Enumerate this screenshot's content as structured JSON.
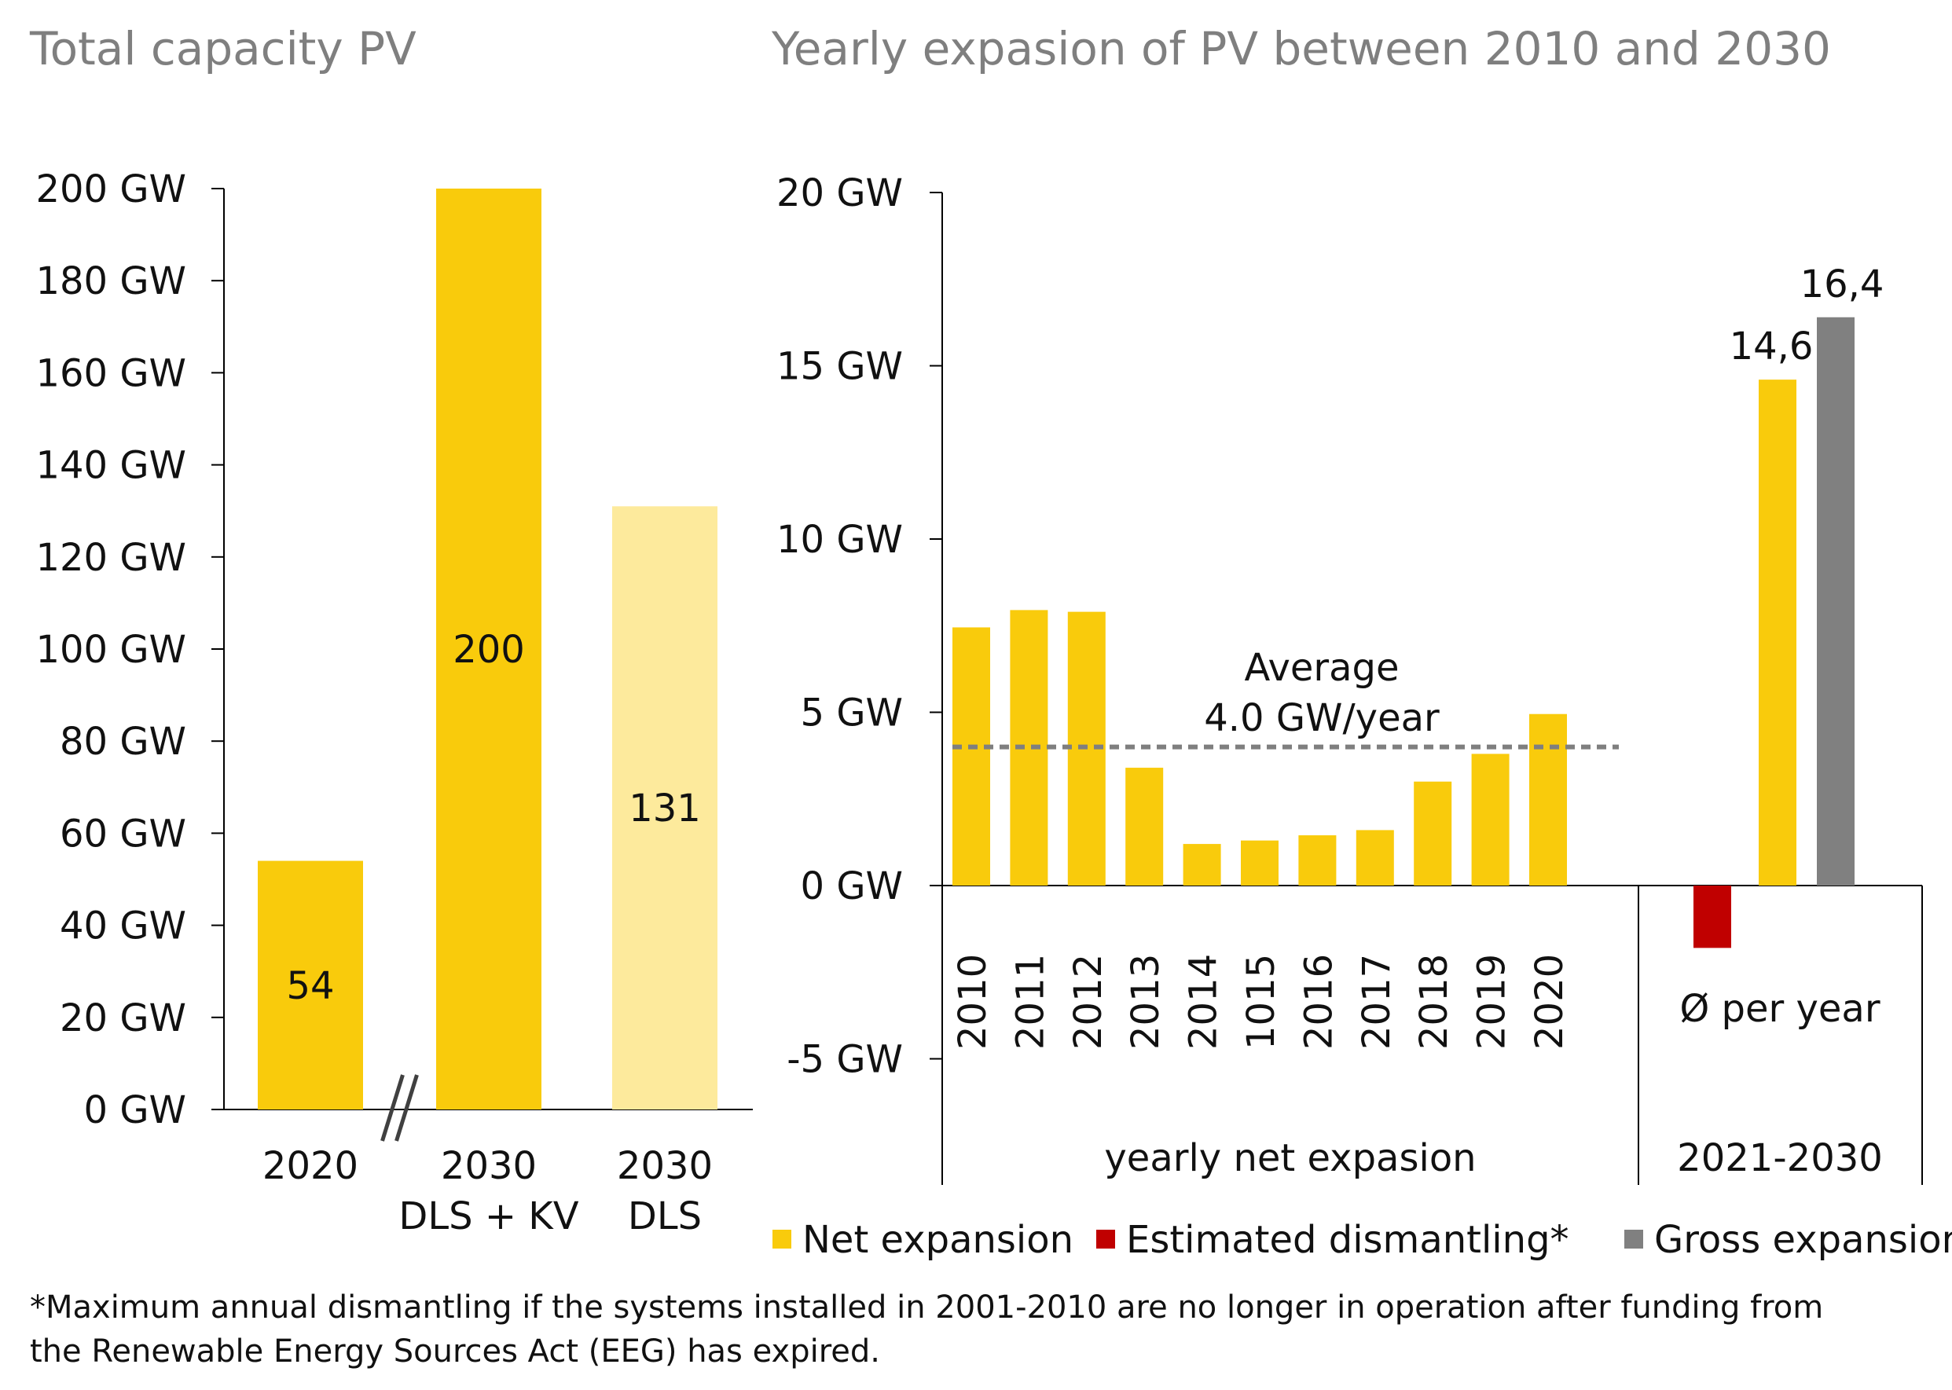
{
  "colors": {
    "net": "#F9CB0C",
    "net_light": "#FDEA9C",
    "dismantling": "#C00000",
    "gross": "#808080",
    "axis": "#000000",
    "average_line": "#7F7F7F",
    "title": "#7F7F7F"
  },
  "chart_data": [
    {
      "type": "bar",
      "title": "Total capacity PV",
      "ylim": [
        0,
        200
      ],
      "y_ticks": [
        "0 GW",
        "20 GW",
        "40 GW",
        "60 GW",
        "80 GW",
        "100 GW",
        "120 GW",
        "140 GW",
        "160 GW",
        "180 GW",
        "200 GW"
      ],
      "categories": [
        {
          "lines": [
            "2020"
          ]
        },
        {
          "lines": [
            "2030",
            "DLS + KV"
          ]
        },
        {
          "lines": [
            "2030",
            "DLS"
          ]
        }
      ],
      "values": [
        54,
        200,
        131
      ],
      "data_labels": [
        "54",
        "200",
        "131"
      ],
      "axis_break": "between 2020 and 2030"
    },
    {
      "type": "bar",
      "title": "Yearly expasion of PV between 2010 and 2030",
      "ylim": [
        -8.5,
        20
      ],
      "y_ticks": [
        {
          "value": 20,
          "label": "20 GW"
        },
        {
          "value": 15,
          "label": "15 GW"
        },
        {
          "value": 10,
          "label": "10 GW"
        },
        {
          "value": 5,
          "label": "5 GW"
        },
        {
          "value": 0,
          "label": "0 GW"
        },
        {
          "value": -5,
          "label": "-5 GW"
        }
      ],
      "groups": [
        {
          "label": "yearly net expasion",
          "categories": [
            "2010",
            "2011",
            "2012",
            "2013",
            "2014",
            "1015",
            "2016",
            "2017",
            "2018",
            "2019",
            "2020"
          ],
          "values": [
            7.45,
            7.95,
            7.9,
            3.4,
            1.2,
            1.3,
            1.45,
            1.6,
            3.0,
            3.8,
            4.95
          ]
        },
        {
          "label": "2021-2030",
          "category": "Ø per year",
          "series": [
            {
              "name": "Estimated dismantling*",
              "value": -1.8
            },
            {
              "name": "Net expansion",
              "value": 14.6,
              "label": "14,6"
            },
            {
              "name": "Gross expansion",
              "value": 16.4,
              "label": "16,4"
            }
          ]
        }
      ],
      "average": {
        "value": 4.0,
        "label_lines": [
          "Average",
          "4.0 GW/year"
        ]
      },
      "legend": {
        "placement": "bottom-right",
        "items": [
          {
            "name": "Net expansion",
            "color": "#F9CB0C"
          },
          {
            "name": "Estimated dismantling*",
            "color": "#C00000"
          },
          {
            "name": "Gross expansion",
            "color": "#808080"
          }
        ]
      }
    }
  ],
  "footnote": [
    "*Maximum annual dismantling if the systems installed in 2001-2010 are no longer in operation after funding from",
    "the Renewable Energy Sources Act (EEG) has expired."
  ]
}
